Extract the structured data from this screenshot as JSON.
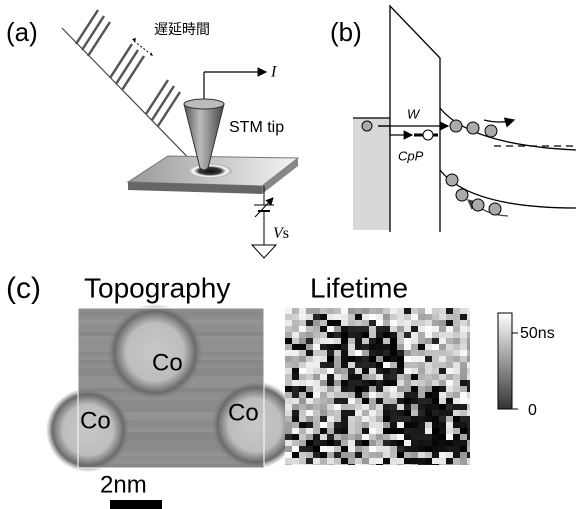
{
  "panel_a": {
    "label": "(a)",
    "delay_time": "遅延時間",
    "current": "I",
    "tip": "STM tip",
    "bias": {
      "symbol": "V",
      "subscript": "s"
    }
  },
  "panel_b": {
    "label": "(b)",
    "w": "W",
    "cpp": "CpP"
  },
  "panel_c": {
    "label": "(c)",
    "topography": {
      "title": "Topography",
      "labels": [
        "Co",
        "Co",
        "Co"
      ],
      "scale_bar": "2nm"
    },
    "lifetime": {
      "title": "Lifetime",
      "colorbar": {
        "max": "50ns",
        "min": "0"
      }
    }
  }
}
